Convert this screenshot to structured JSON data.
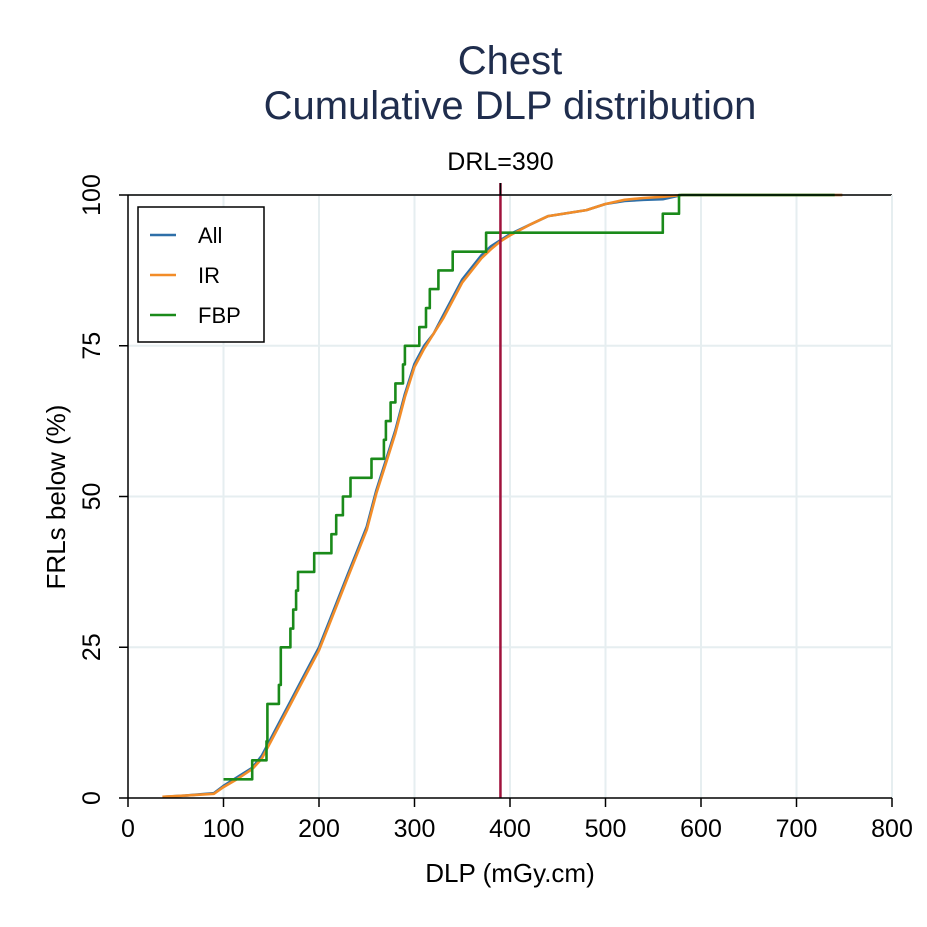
{
  "chart_data": {
    "type": "line",
    "title_lines": [
      "Chest",
      "Cumulative DLP distribution"
    ],
    "xlabel": "DLP (mGy.cm)",
    "ylabel": "FRLs below (%)",
    "xlim": [
      0,
      800
    ],
    "ylim": [
      0,
      100
    ],
    "xticks": [
      0,
      100,
      200,
      300,
      400,
      500,
      600,
      700,
      800
    ],
    "yticks": [
      0,
      25,
      50,
      75,
      100
    ],
    "grid": true,
    "legend_position": "top-left",
    "reference_line": {
      "x": 390,
      "label": "DRL=390",
      "color": "#a0123c"
    },
    "series": [
      {
        "name": "All",
        "color": "#2e6fa8",
        "step": false,
        "points": [
          [
            38,
            0.2
          ],
          [
            60,
            0.4
          ],
          [
            90,
            0.8
          ],
          [
            100,
            2
          ],
          [
            115,
            3.5
          ],
          [
            130,
            5
          ],
          [
            140,
            7
          ],
          [
            150,
            10
          ],
          [
            160,
            13
          ],
          [
            170,
            16
          ],
          [
            180,
            19
          ],
          [
            190,
            22
          ],
          [
            200,
            25
          ],
          [
            210,
            29
          ],
          [
            220,
            33
          ],
          [
            230,
            37
          ],
          [
            240,
            41
          ],
          [
            250,
            45
          ],
          [
            260,
            51
          ],
          [
            270,
            56
          ],
          [
            280,
            61
          ],
          [
            290,
            67
          ],
          [
            300,
            72
          ],
          [
            310,
            75
          ],
          [
            320,
            77
          ],
          [
            330,
            80
          ],
          [
            340,
            83
          ],
          [
            350,
            86
          ],
          [
            360,
            88
          ],
          [
            370,
            90
          ],
          [
            380,
            91.5
          ],
          [
            390,
            92.5
          ],
          [
            400,
            93.5
          ],
          [
            420,
            95
          ],
          [
            440,
            96.5
          ],
          [
            460,
            97
          ],
          [
            480,
            97.5
          ],
          [
            500,
            98.5
          ],
          [
            520,
            99
          ],
          [
            540,
            99.2
          ],
          [
            560,
            99.3
          ],
          [
            580,
            100
          ],
          [
            748,
            100
          ]
        ]
      },
      {
        "name": "IR",
        "color": "#f28c28",
        "step": false,
        "points": [
          [
            36,
            0.2
          ],
          [
            60,
            0.4
          ],
          [
            90,
            0.7
          ],
          [
            100,
            1.8
          ],
          [
            115,
            3.2
          ],
          [
            130,
            4.8
          ],
          [
            140,
            6.5
          ],
          [
            150,
            9.5
          ],
          [
            160,
            12.5
          ],
          [
            170,
            15.5
          ],
          [
            180,
            18.5
          ],
          [
            190,
            21.5
          ],
          [
            200,
            24.5
          ],
          [
            210,
            28.5
          ],
          [
            220,
            32.5
          ],
          [
            230,
            36.5
          ],
          [
            240,
            40.5
          ],
          [
            250,
            44.5
          ],
          [
            260,
            50.5
          ],
          [
            270,
            55.5
          ],
          [
            280,
            60.5
          ],
          [
            290,
            66.5
          ],
          [
            300,
            71.5
          ],
          [
            310,
            74.5
          ],
          [
            320,
            77
          ],
          [
            330,
            79.5
          ],
          [
            340,
            82.5
          ],
          [
            350,
            85.5
          ],
          [
            360,
            87.5
          ],
          [
            370,
            89.5
          ],
          [
            380,
            91
          ],
          [
            390,
            92.3
          ],
          [
            400,
            93.3
          ],
          [
            420,
            95
          ],
          [
            440,
            96.5
          ],
          [
            460,
            97
          ],
          [
            480,
            97.5
          ],
          [
            500,
            98.5
          ],
          [
            520,
            99.2
          ],
          [
            540,
            99.5
          ],
          [
            560,
            99.7
          ],
          [
            580,
            100
          ],
          [
            748,
            100
          ]
        ]
      },
      {
        "name": "FBP",
        "color": "#1a8a1a",
        "step": true,
        "points": [
          [
            100,
            3.1
          ],
          [
            130,
            6.25
          ],
          [
            145,
            9.4
          ],
          [
            146,
            15.6
          ],
          [
            158,
            18.75
          ],
          [
            160,
            25
          ],
          [
            170,
            28.1
          ],
          [
            173,
            31.25
          ],
          [
            176,
            34.4
          ],
          [
            178,
            37.5
          ],
          [
            195,
            40.6
          ],
          [
            213,
            43.75
          ],
          [
            218,
            46.9
          ],
          [
            225,
            50
          ],
          [
            233,
            53.1
          ],
          [
            255,
            56.25
          ],
          [
            268,
            59.4
          ],
          [
            270,
            62.5
          ],
          [
            275,
            65.6
          ],
          [
            280,
            68.75
          ],
          [
            288,
            71.9
          ],
          [
            290,
            75
          ],
          [
            305,
            78.1
          ],
          [
            312,
            81.25
          ],
          [
            316,
            84.4
          ],
          [
            325,
            87.5
          ],
          [
            340,
            90.6
          ],
          [
            375,
            93.75
          ],
          [
            560,
            96.9
          ],
          [
            577,
            100
          ],
          [
            740,
            100
          ]
        ]
      }
    ]
  }
}
